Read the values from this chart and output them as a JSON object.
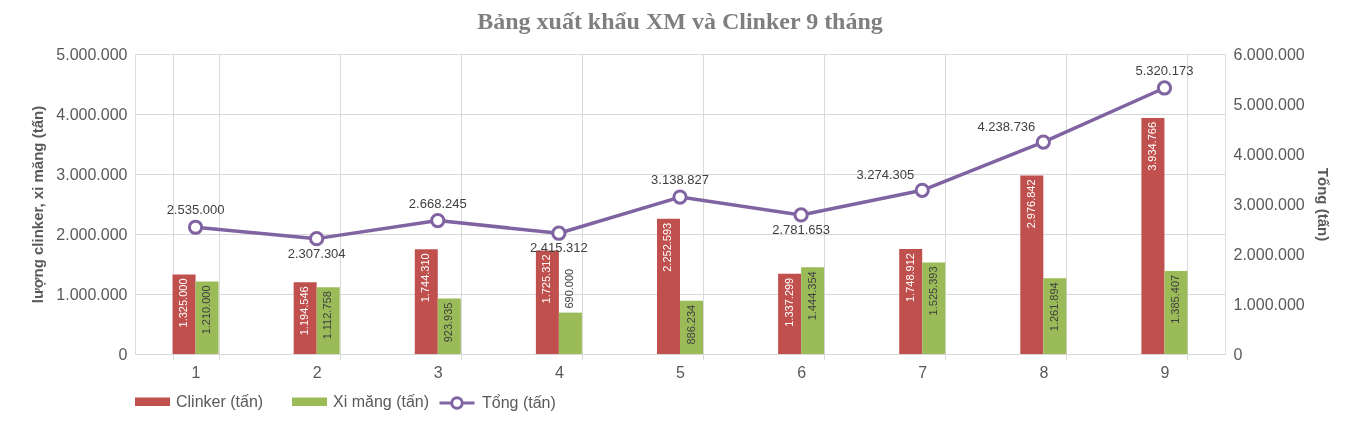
{
  "chart_data": {
    "type": "bar",
    "title": "Bảng xuất khẩu XM và Clinker 9 tháng",
    "ylabel": "lượng clinker, xi măng (tấn)",
    "y2label": "Tổng (tấn)",
    "categories": [
      "1",
      "2",
      "3",
      "4",
      "5",
      "6",
      "7",
      "8",
      "9"
    ],
    "series": [
      {
        "name": "Clinker (tấn)",
        "color": "#c0504d",
        "values": [
          1325000,
          1194546,
          1744310,
          1725312,
          2252593,
          1337299,
          1748912,
          2976842,
          3934766
        ],
        "value_labels": [
          "1.325.000",
          "1.194.546",
          "1.744.310",
          "1.725.312",
          "2.252.593",
          "1.337.299",
          "1.748.912",
          "2.976.842",
          "3.934.766"
        ]
      },
      {
        "name": "Xi măng (tấn)",
        "color": "#9bbb59",
        "values": [
          1210000,
          1112758,
          923935,
          690000,
          886234,
          1444354,
          1525393,
          1261894,
          1385407
        ],
        "value_labels": [
          "1.210.000",
          "1.112.758",
          "923.935",
          "690.000",
          "886.234",
          "1.444.354",
          "1.525.393",
          "1.261.894",
          "1.385.407"
        ]
      },
      {
        "name": "Tổng (tấn)",
        "type": "line",
        "axis": "y2",
        "color": "#8064a2",
        "marker": "circle",
        "values": [
          2535000,
          2307304,
          2668245,
          2415312,
          3138827,
          2781653,
          3274305,
          4238736,
          5320173
        ],
        "value_labels": [
          "2.535.000",
          "2.307.304",
          "2.668.245",
          "2.415.312",
          "3.138.827",
          "2.781.653",
          "3.274.305",
          "4.238.736",
          "5.320.173"
        ]
      }
    ],
    "ylim": [
      0,
      5000000
    ],
    "yticks": [
      0,
      {
        "value": 1000000,
        "label": "1.000.000"
      },
      {
        "value": 2000000,
        "label": "2.000.000"
      },
      {
        "value": 3000000,
        "label": "3.000.000"
      },
      {
        "value": 4000000,
        "label": "4.000.000"
      },
      {
        "value": 5000000,
        "label": "5.000.000"
      }
    ],
    "y2lim": [
      0,
      6000000
    ],
    "y2ticks": [
      0,
      {
        "value": 1000000,
        "label": "1.000.000"
      },
      {
        "value": 2000000,
        "label": "2.000.000"
      },
      {
        "value": 3000000,
        "label": "3.000.000"
      },
      {
        "value": 4000000,
        "label": "4.000.000"
      },
      {
        "value": 5000000,
        "label": "5.000.000"
      },
      {
        "value": 6000000,
        "label": "6.000.000"
      }
    ],
    "grid": true,
    "legend": "bottom"
  }
}
